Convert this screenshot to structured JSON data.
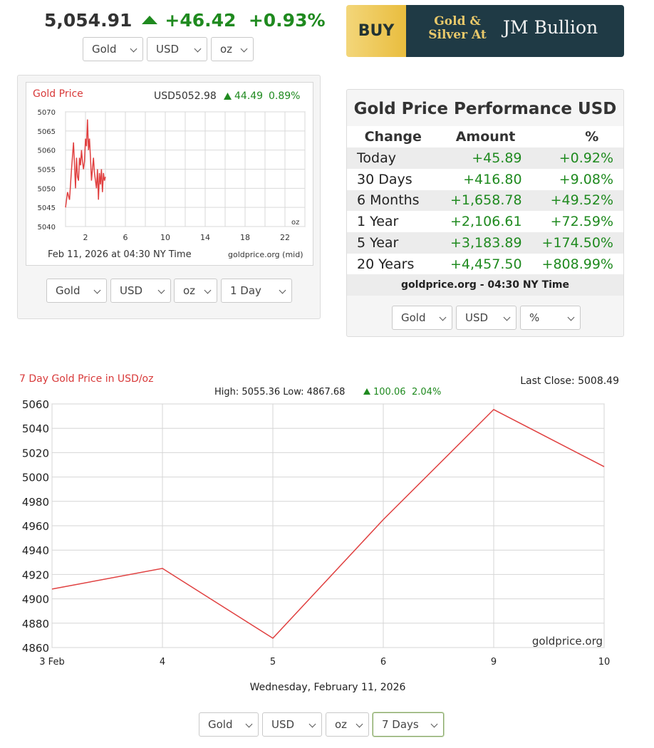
{
  "ticker": {
    "price": "5,054.91",
    "change": "+46.42",
    "percent": "+0.93%"
  },
  "top_selectors": [
    "Gold",
    "USD",
    "oz"
  ],
  "banner": {
    "buy": "BUY",
    "tagline_1": "Gold &",
    "tagline_2": "Silver At",
    "brand": "JM Bullion"
  },
  "small_chart": {
    "title": "Gold Price",
    "price_label": "USD5052.98",
    "change": "44.49",
    "percent": "0.89%",
    "date_label": "Feb 11, 2026 at 04:30 NY Time",
    "source": "goldprice.org (mid)",
    "unit": "oz",
    "selectors": [
      "Gold",
      "USD",
      "oz",
      "1 Day"
    ]
  },
  "performance": {
    "title": "Gold Price Performance USD",
    "headers": [
      "Change",
      "Amount",
      "%"
    ],
    "rows": [
      {
        "period": "Today",
        "amount": "+45.89",
        "pct": "+0.92%"
      },
      {
        "period": "30 Days",
        "amount": "+416.80",
        "pct": "+9.08%"
      },
      {
        "period": "6 Months",
        "amount": "+1,658.78",
        "pct": "+49.52%"
      },
      {
        "period": "1 Year",
        "amount": "+2,106.61",
        "pct": "+72.59%"
      },
      {
        "period": "5 Year",
        "amount": "+3,183.89",
        "pct": "+174.50%"
      },
      {
        "period": "20 Years",
        "amount": "+4,457.50",
        "pct": "+808.99%"
      }
    ],
    "footer": "goldprice.org - 04:30 NY Time",
    "selectors": [
      "Gold",
      "USD",
      "%"
    ]
  },
  "big_chart": {
    "title": "7 Day Gold Price in USD/oz",
    "last_close": "Last Close: 5008.49",
    "high_low": "High: 5055.36 Low: 4867.68",
    "change": "100.06",
    "percent": "2.04%",
    "watermark": "goldprice.org",
    "date_label": "Wednesday, February 11, 2026",
    "selectors": [
      "Gold",
      "USD",
      "oz",
      "7 Days"
    ]
  },
  "chart_data": [
    {
      "type": "line",
      "title": "Gold Price",
      "x": [
        0.0,
        0.2,
        0.4,
        0.6,
        0.8,
        1.0,
        1.1,
        1.2,
        1.3,
        1.4,
        1.5,
        1.6,
        1.7,
        1.8,
        1.9,
        2.0,
        2.1,
        2.2,
        2.3,
        2.4,
        2.5,
        2.6,
        2.7,
        2.8,
        2.9,
        3.0,
        3.1,
        3.2,
        3.3,
        3.4,
        3.5,
        3.6,
        3.7,
        3.8,
        3.9,
        4.0
      ],
      "series": [
        {
          "values": [
            5045,
            5049,
            5047,
            5055,
            5062,
            5050,
            5058,
            5053,
            5052,
            5058,
            5056,
            5060,
            5057,
            5055,
            5057,
            5063,
            5061,
            5068,
            5060,
            5063,
            5058,
            5052,
            5055,
            5058,
            5054,
            5052,
            5050,
            5055,
            5047,
            5054,
            5051,
            5055,
            5049,
            5054,
            5052,
            5053
          ]
        }
      ],
      "xticks": [
        2,
        6,
        10,
        14,
        18,
        22
      ],
      "xlim": [
        0,
        24
      ],
      "ylim": [
        5040,
        5070
      ],
      "yticks": [
        5040,
        5045,
        5050,
        5055,
        5060,
        5065,
        5070
      ],
      "grid": true
    },
    {
      "type": "line",
      "title": "7 Day Gold Price in USD/oz",
      "categories": [
        "3 Feb",
        "4",
        "5",
        "6",
        "9",
        "10"
      ],
      "values": [
        4908,
        4925,
        4867.68,
        4965,
        5055.36,
        5008.49
      ],
      "ylim": [
        4860,
        5060
      ],
      "yticks": [
        4860,
        4880,
        4900,
        4920,
        4940,
        4960,
        4980,
        5000,
        5020,
        5040,
        5060
      ],
      "grid": true
    }
  ]
}
